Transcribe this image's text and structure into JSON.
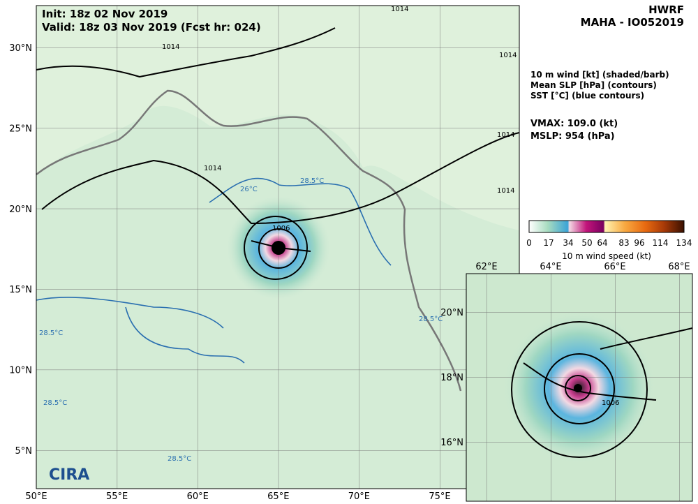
{
  "header": {
    "init": "Init:   18z 02 Nov 2019",
    "valid": "Valid: 18z 03 Nov 2019 (Fcst hr: 024)",
    "model": "HWRF",
    "storm": "MAHA - IO052019"
  },
  "legend": {
    "lines": [
      "10 m wind [kt] (shaded/barb)",
      "Mean SLP [hPa] (contours)",
      "SST [°C] (blue contours)"
    ],
    "vmax": "VMAX: 109.0 (kt)",
    "mslp": "MSLP:  954 (hPa)"
  },
  "colorbar": {
    "ticks": [
      "0",
      "17",
      "34",
      "50",
      "64",
      "83",
      "96",
      "114",
      "134"
    ],
    "label": "10 m wind speed (kt)"
  },
  "main_map": {
    "lon_labels": [
      "50°E",
      "55°E",
      "60°E",
      "65°E",
      "70°E",
      "75°E"
    ],
    "lat_labels": [
      "5°N",
      "10°N",
      "15°N",
      "20°N",
      "25°N",
      "30°N"
    ],
    "contour_labels": [
      "1014",
      "1014",
      "1014",
      "1014",
      "1014",
      "1014",
      "1006",
      "26°C",
      "28.5°C",
      "28.5°C",
      "28.5°C",
      "28.5°C",
      "28.5°C"
    ]
  },
  "inset_map": {
    "lon_labels": [
      "62°E",
      "64°E",
      "66°E",
      "68°E"
    ],
    "lat_labels": [
      "16°N",
      "18°N",
      "20°N"
    ],
    "contour_labels": [
      "1006"
    ]
  },
  "logo": "CIRA"
}
